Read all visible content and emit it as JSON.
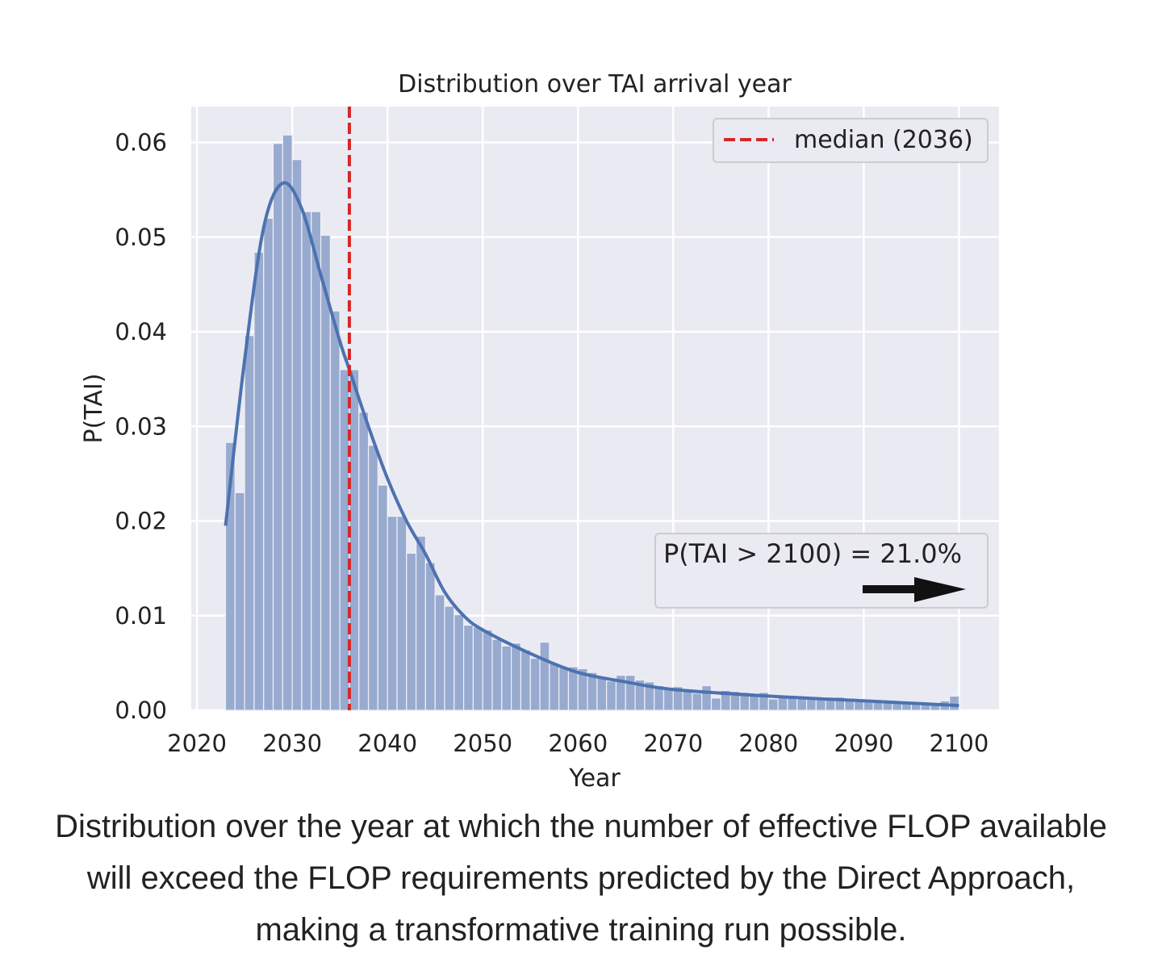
{
  "chart_data": {
    "type": "bar",
    "title": "Distribution over TAI arrival year",
    "xlabel": "Year",
    "ylabel": "P(TAI)",
    "xlim": [
      2019.4,
      2104.2
    ],
    "ylim": [
      0,
      0.0638
    ],
    "xticks": [
      "2020",
      "2030",
      "2040",
      "2050",
      "2060",
      "2070",
      "2080",
      "2090",
      "2100"
    ],
    "yticks": [
      "0.00",
      "0.01",
      "0.02",
      "0.03",
      "0.04",
      "0.05",
      "0.06"
    ],
    "grid": true,
    "background": "#eaeaf2",
    "bar_color": "#98aacf",
    "line_color": "#4c72b0",
    "median_color": "#d62728",
    "bin_start": 2023,
    "bin_width": 1,
    "values": [
      0.0283,
      0.023,
      0.0396,
      0.0484,
      0.052,
      0.0599,
      0.0608,
      0.0582,
      0.0527,
      0.0527,
      0.0502,
      0.0422,
      0.036,
      0.036,
      0.0315,
      0.028,
      0.0238,
      0.0205,
      0.0205,
      0.0166,
      0.0184,
      0.0156,
      0.0122,
      0.011,
      0.0101,
      0.009,
      0.0088,
      0.0085,
      0.0075,
      0.0068,
      0.0071,
      0.0064,
      0.0055,
      0.0072,
      0.005,
      0.0045,
      0.0046,
      0.0044,
      0.004,
      0.0035,
      0.0031,
      0.0037,
      0.0037,
      0.0032,
      0.003,
      0.0026,
      0.0024,
      0.0025,
      0.002,
      0.0018,
      0.0026,
      0.0013,
      0.0021,
      0.002,
      0.0019,
      0.0018,
      0.0019,
      0.0012,
      0.0014,
      0.0014,
      0.0014,
      0.0014,
      0.0014,
      0.0013,
      0.0014,
      0.0013,
      0.0012,
      0.001,
      0.001,
      0.0009,
      0.0008,
      0.0008,
      0.0008,
      0.0008,
      0.0008,
      0.001,
      0.0015
    ],
    "kde": {
      "x": [
        2023,
        2025,
        2027,
        2029,
        2031,
        2033,
        2035,
        2036,
        2038,
        2040,
        2042,
        2044,
        2046,
        2048,
        2050,
        2055,
        2060,
        2065,
        2070,
        2080,
        2090,
        2100
      ],
      "y": [
        0.0195,
        0.037,
        0.051,
        0.0557,
        0.053,
        0.046,
        0.039,
        0.036,
        0.03,
        0.0245,
        0.02,
        0.0165,
        0.0125,
        0.01,
        0.0085,
        0.006,
        0.004,
        0.003,
        0.0022,
        0.0015,
        0.001,
        0.0005
      ]
    },
    "median": 2036,
    "legend": {
      "label": "median (2036)",
      "placement": "top-right"
    },
    "annotation": {
      "text": "P(TAI > 2100) = 21.0%",
      "arrow": "right"
    }
  },
  "caption": "Distribution over the year at which the number of effective FLOP available will exceed the FLOP requirements predicted by the Direct Approach, making a transformative training run possible."
}
